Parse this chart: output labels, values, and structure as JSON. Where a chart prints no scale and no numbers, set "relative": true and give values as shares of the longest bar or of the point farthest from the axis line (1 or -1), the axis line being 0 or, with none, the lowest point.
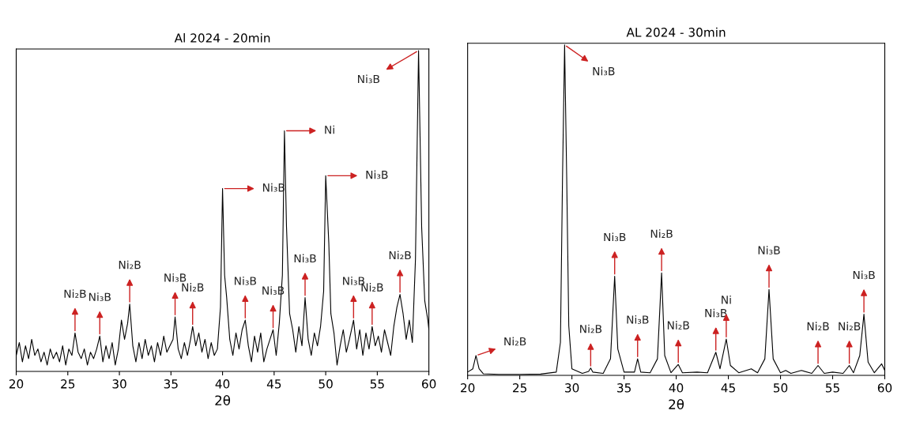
{
  "chart_data": [
    {
      "type": "line",
      "title": "Al 2024 - 20min",
      "xlabel": "2θ",
      "relative": true,
      "tick_labels": "x",
      "xlim": [
        20,
        60
      ],
      "xticks": [
        20,
        25,
        30,
        35,
        40,
        45,
        50,
        55,
        60
      ],
      "grid": false,
      "legend": false,
      "marker": "none",
      "line_style": "solid",
      "series": [
        {
          "color": "#000000",
          "x": [
            20,
            20.3,
            20.6,
            20.9,
            21.2,
            21.5,
            21.8,
            22.1,
            22.4,
            22.7,
            23,
            23.3,
            23.6,
            23.9,
            24.2,
            24.5,
            24.8,
            25.1,
            25.4,
            25.7,
            26,
            26.3,
            26.6,
            26.9,
            27.2,
            27.5,
            27.8,
            28.1,
            28.4,
            28.7,
            29,
            29.3,
            29.6,
            29.9,
            30.2,
            30.5,
            30.8,
            31,
            31.3,
            31.6,
            31.9,
            32.2,
            32.5,
            32.8,
            33.1,
            33.4,
            33.7,
            34,
            34.3,
            34.6,
            34.9,
            35.2,
            35.4,
            35.7,
            36,
            36.3,
            36.6,
            36.9,
            37.1,
            37.4,
            37.7,
            38,
            38.3,
            38.6,
            38.9,
            39.2,
            39.5,
            39.8,
            40,
            40.2,
            40.4,
            40.7,
            41,
            41.3,
            41.6,
            41.9,
            42.2,
            42.5,
            42.8,
            43.1,
            43.4,
            43.7,
            44,
            44.3,
            44.6,
            44.9,
            45.2,
            45.5,
            45.8,
            46,
            46.2,
            46.5,
            46.8,
            47.1,
            47.4,
            47.7,
            48,
            48.3,
            48.6,
            48.9,
            49.2,
            49.5,
            49.8,
            50,
            50.3,
            50.5,
            50.8,
            51.1,
            51.4,
            51.7,
            52,
            52.3,
            52.7,
            53,
            53.3,
            53.6,
            53.9,
            54.2,
            54.5,
            54.8,
            55.1,
            55.4,
            55.7,
            56,
            56.3,
            56.6,
            56.9,
            57.2,
            57.5,
            57.8,
            58.1,
            58.4,
            58.7,
            59,
            59.3,
            59.6,
            59.9,
            60
          ],
          "values": [
            0.05,
            0.09,
            0.03,
            0.08,
            0.04,
            0.1,
            0.05,
            0.07,
            0.03,
            0.06,
            0.02,
            0.07,
            0.04,
            0.06,
            0.03,
            0.08,
            0.02,
            0.07,
            0.05,
            0.12,
            0.06,
            0.04,
            0.07,
            0.02,
            0.06,
            0.04,
            0.07,
            0.11,
            0.03,
            0.08,
            0.04,
            0.09,
            0.02,
            0.07,
            0.16,
            0.1,
            0.15,
            0.21,
            0.08,
            0.03,
            0.09,
            0.04,
            0.1,
            0.05,
            0.08,
            0.03,
            0.09,
            0.05,
            0.11,
            0.06,
            0.08,
            0.1,
            0.17,
            0.07,
            0.04,
            0.09,
            0.05,
            0.1,
            0.14,
            0.08,
            0.12,
            0.06,
            0.1,
            0.04,
            0.09,
            0.05,
            0.07,
            0.2,
            0.57,
            0.3,
            0.23,
            0.1,
            0.05,
            0.12,
            0.07,
            0.13,
            0.16,
            0.08,
            0.03,
            0.11,
            0.06,
            0.12,
            0.03,
            0.07,
            0.1,
            0.13,
            0.05,
            0.15,
            0.3,
            0.75,
            0.45,
            0.18,
            0.13,
            0.06,
            0.14,
            0.08,
            0.23,
            0.1,
            0.05,
            0.12,
            0.08,
            0.14,
            0.25,
            0.61,
            0.4,
            0.18,
            0.12,
            0.02,
            0.08,
            0.13,
            0.06,
            0.1,
            0.16,
            0.07,
            0.13,
            0.05,
            0.12,
            0.07,
            0.14,
            0.08,
            0.11,
            0.06,
            0.13,
            0.09,
            0.05,
            0.14,
            0.2,
            0.24,
            0.18,
            0.1,
            0.16,
            0.09,
            0.35,
            1.0,
            0.45,
            0.22,
            0.16,
            0.13
          ]
        }
      ],
      "annotations": [
        {
          "text": "Ni₂B",
          "x": 25.7,
          "y": 0.12
        },
        {
          "text": "Ni₃B",
          "x": 28.1,
          "y": 0.11
        },
        {
          "text": "Ni₂B",
          "x": 31,
          "y": 0.21
        },
        {
          "text": "Ni₃B",
          "x": 35.4,
          "y": 0.17
        },
        {
          "text": "Ni₂B",
          "x": 37.1,
          "y": 0.14
        },
        {
          "text": "Ni₃B",
          "x": 40,
          "y": 0.57
        },
        {
          "text": "Ni₃B",
          "x": 42.2,
          "y": 0.16
        },
        {
          "text": "Ni₃B",
          "x": 44.9,
          "y": 0.13
        },
        {
          "text": "Ni",
          "x": 46,
          "y": 0.75
        },
        {
          "text": "Ni₃B",
          "x": 48,
          "y": 0.23
        },
        {
          "text": "Ni₃B",
          "x": 50,
          "y": 0.61
        },
        {
          "text": "Ni₃B",
          "x": 52.7,
          "y": 0.16
        },
        {
          "text": "Ni₂B",
          "x": 54.5,
          "y": 0.14
        },
        {
          "text": "Ni₂B",
          "x": 57.2,
          "y": 0.24
        },
        {
          "text": "Ni₃B",
          "x": 59,
          "y": 1.0
        }
      ]
    },
    {
      "type": "line",
      "title": "AL 2024 - 30min",
      "xlabel": "2θ",
      "relative": true,
      "tick_labels": "x",
      "xlim": [
        20,
        60
      ],
      "xticks": [
        20,
        25,
        30,
        35,
        40,
        45,
        50,
        55,
        60
      ],
      "grid": false,
      "legend": false,
      "marker": "none",
      "line_style": "solid",
      "series": [
        {
          "color": "#000000",
          "x": [
            20,
            20.5,
            20.8,
            21.1,
            21.5,
            23,
            25,
            27,
            28.5,
            28.9,
            29.1,
            29.3,
            29.5,
            29.7,
            30,
            31,
            31.6,
            31.8,
            32,
            33,
            33.7,
            34.1,
            34.4,
            35,
            36,
            36.3,
            36.6,
            37.5,
            38.2,
            38.6,
            38.9,
            39.5,
            40.2,
            40.6,
            42,
            43,
            43.8,
            44.2,
            44.8,
            45.2,
            46,
            47.2,
            47.8,
            48.5,
            48.9,
            49.3,
            50,
            50.5,
            51,
            52,
            53,
            53.6,
            54.2,
            55,
            56,
            56.6,
            57,
            57.6,
            58,
            58.4,
            59,
            59.7,
            60
          ],
          "values": [
            0.01,
            0.02,
            0.06,
            0.02,
            0.005,
            0.003,
            0.003,
            0.004,
            0.01,
            0.1,
            0.6,
            1.0,
            0.6,
            0.15,
            0.02,
            0.006,
            0.012,
            0.022,
            0.01,
            0.006,
            0.05,
            0.3,
            0.08,
            0.01,
            0.01,
            0.05,
            0.01,
            0.008,
            0.05,
            0.31,
            0.06,
            0.008,
            0.033,
            0.008,
            0.01,
            0.008,
            0.07,
            0.02,
            0.11,
            0.03,
            0.008,
            0.02,
            0.008,
            0.05,
            0.26,
            0.05,
            0.008,
            0.015,
            0.006,
            0.015,
            0.006,
            0.03,
            0.006,
            0.01,
            0.006,
            0.03,
            0.008,
            0.06,
            0.185,
            0.04,
            0.008,
            0.035,
            0.015
          ]
        }
      ],
      "annotations": [
        {
          "text": "Ni₂B",
          "x": 20.8,
          "y": 0.06
        },
        {
          "text": "Ni₃B",
          "x": 29.3,
          "y": 1.0
        },
        {
          "text": "Ni₂B",
          "x": 31.8,
          "y": 0.022
        },
        {
          "text": "Ni₃B",
          "x": 34.1,
          "y": 0.3
        },
        {
          "text": "Ni₃B",
          "x": 36.3,
          "y": 0.05
        },
        {
          "text": "Ni₂B",
          "x": 38.6,
          "y": 0.31
        },
        {
          "text": "Ni₂B",
          "x": 40.2,
          "y": 0.033
        },
        {
          "text": "Ni₃B",
          "x": 43.8,
          "y": 0.07
        },
        {
          "text": "Ni",
          "x": 44.8,
          "y": 0.11
        },
        {
          "text": "Ni₃B",
          "x": 48.9,
          "y": 0.26
        },
        {
          "text": "Ni₂B",
          "x": 53.6,
          "y": 0.03
        },
        {
          "text": "Ni₂B",
          "x": 56.6,
          "y": 0.03
        },
        {
          "text": "Ni₃B",
          "x": 58,
          "y": 0.185
        }
      ]
    }
  ]
}
